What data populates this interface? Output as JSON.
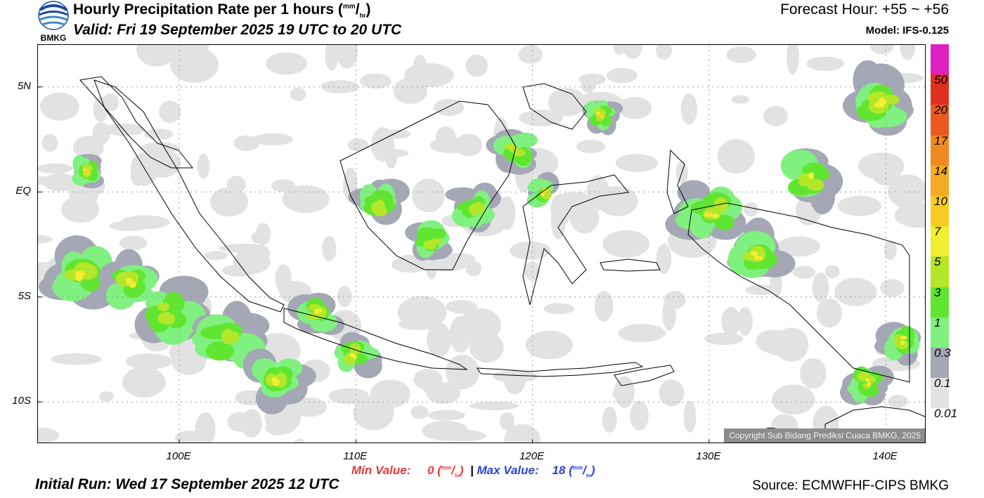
{
  "header": {
    "title_main": "Hourly Precipitation Rate per 1 hours (",
    "title_unit_num": "mm",
    "title_unit_den": "hr",
    "title_close": ")",
    "valid": "Valid: Fri 19 September 2025 19 UTC to 20 UTC",
    "forecast_hour": "Forecast Hour: +55 ~ +56",
    "model": "Model: IFS-0.125",
    "logo_text": "BMKG"
  },
  "map": {
    "lat_ticks": [
      {
        "label": "5N",
        "lat": 5
      },
      {
        "label": "EQ",
        "lat": 0
      },
      {
        "label": "5S",
        "lat": -5
      },
      {
        "label": "10S",
        "lat": -10
      }
    ],
    "lon_ticks": [
      {
        "label": "100E",
        "lon": 100
      },
      {
        "label": "110E",
        "lon": 110
      },
      {
        "label": "120E",
        "lon": 120
      },
      {
        "label": "130E",
        "lon": 130
      },
      {
        "label": "140E",
        "lon": 140
      }
    ],
    "lon_range": [
      92,
      142.3
    ],
    "lat_range": [
      -12,
      7
    ],
    "copyright": "Copyright Sub Bidang Prediksi Cuaca BMKG, 2025"
  },
  "legend": {
    "colors": [
      "#e020c0",
      "#e03020",
      "#ea5a1e",
      "#f08a20",
      "#f4aa22",
      "#f6cc22",
      "#f2ee30",
      "#b4e62a",
      "#60e630",
      "#80f080",
      "#a4a8b4",
      "#e2e2e2"
    ],
    "labels": [
      "50",
      "20",
      "17",
      "14",
      "10",
      "7",
      "5",
      "3",
      "1",
      "0.3",
      "0.1",
      "0.01"
    ]
  },
  "footer": {
    "min_label": "Min Value:",
    "min_value": "0",
    "max_label": "Max Value:",
    "max_value": "18",
    "unit_num": "mm",
    "unit_den": "hr",
    "separator": "|",
    "initial_run": "Initial Run: Wed 17 September 2025 12 UTC",
    "source": "Source: ECMWFHF-CIPS BMKG"
  }
}
